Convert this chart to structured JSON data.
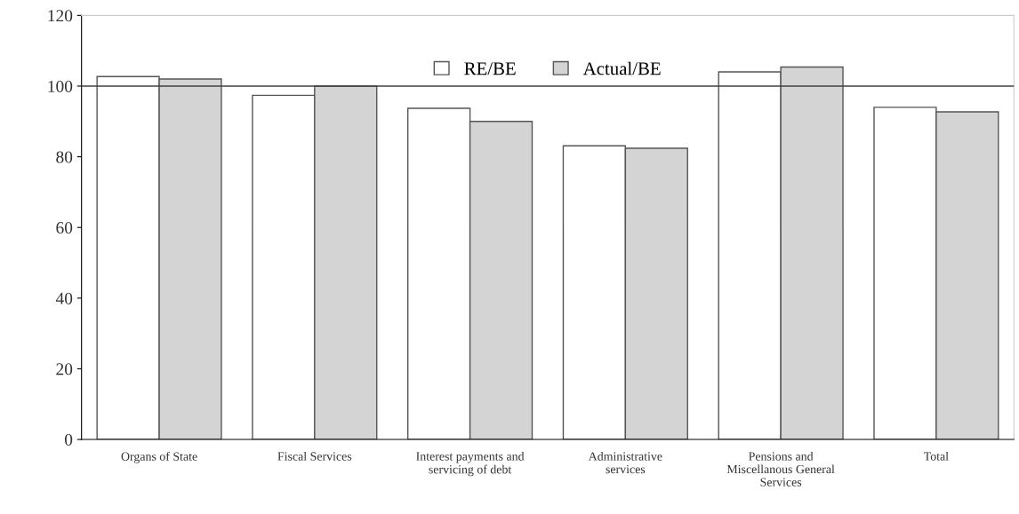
{
  "chart_data": {
    "type": "bar",
    "categories": [
      "Organs of State",
      "Fiscal Services",
      "Interest payments and\nservicing of debt",
      "Administrative\nservices",
      "Pensions and\nMiscellanous General\nServices",
      "Total"
    ],
    "series": [
      {
        "name": "RE/BE",
        "color": "#ffffff",
        "values": [
          102.7,
          97.4,
          93.7,
          83.1,
          104,
          94
        ]
      },
      {
        "name": "Actual/BE",
        "color": "#d4d4d4",
        "values": [
          102,
          100,
          90,
          82.4,
          105.4,
          92.7
        ]
      }
    ],
    "ylim": [
      0,
      120
    ],
    "yticks": [
      0,
      20,
      40,
      60,
      80,
      100,
      120
    ],
    "ref_lines": [
      {
        "axis": "y",
        "value": 100,
        "color": "#404040"
      }
    ],
    "legend": "top",
    "grid": false
  }
}
